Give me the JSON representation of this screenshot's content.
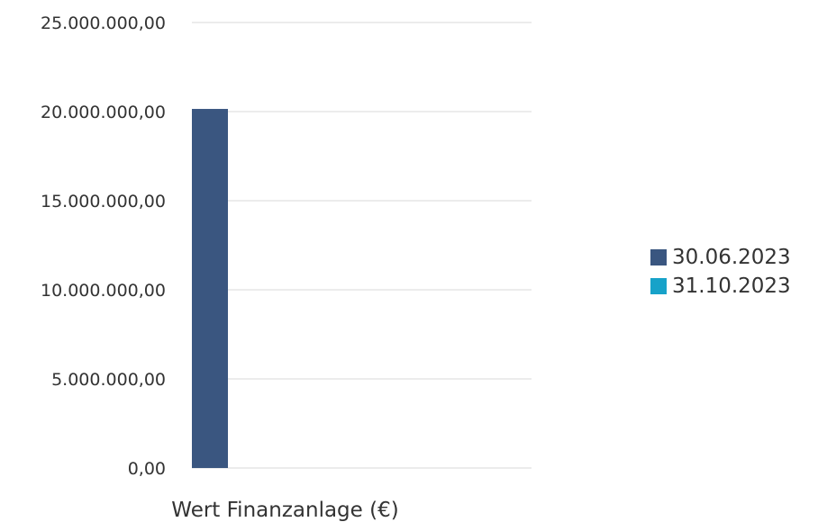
{
  "chart_data": {
    "type": "bar",
    "categories": [
      "Wert Finanzanlage (€)"
    ],
    "series": [
      {
        "name": "30.06.2023",
        "values": [
          20150000
        ],
        "color": "#3a5680"
      },
      {
        "name": "31.10.2023",
        "values": [
          0
        ],
        "color": "#17a2c9"
      }
    ],
    "ylim": [
      0,
      25000000
    ],
    "yticks": [
      {
        "value": 0,
        "label": "0,00"
      },
      {
        "value": 5000000,
        "label": "5.000.000,00"
      },
      {
        "value": 10000000,
        "label": "10.000.000,00"
      },
      {
        "value": 15000000,
        "label": "15.000.000,00"
      },
      {
        "value": 20000000,
        "label": "20.000.000,00"
      },
      {
        "value": 25000000,
        "label": "25.000.000,00"
      }
    ],
    "grid": true,
    "legend_position": "right"
  }
}
